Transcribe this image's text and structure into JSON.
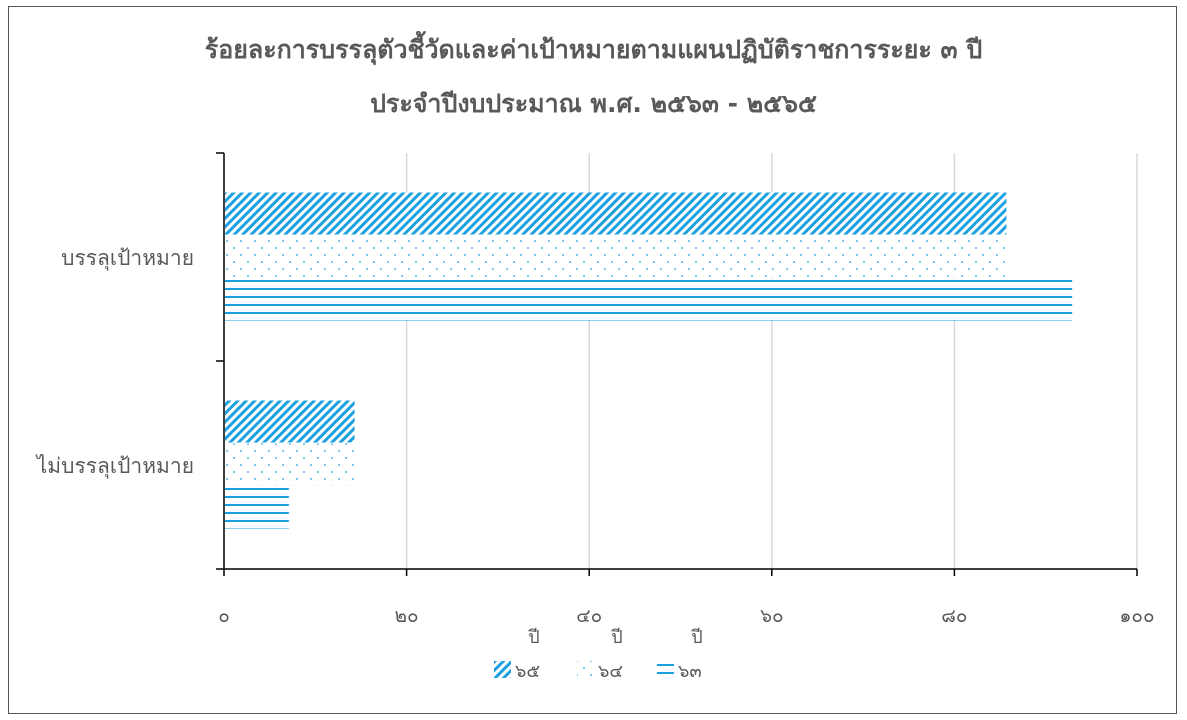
{
  "chart_data": {
    "type": "bar",
    "orientation": "horizontal",
    "title": "ร้อยละการบรรลุตัวชี้วัดและค่าเป้าหมายตามแผนปฏิบัติราชการระยะ ๓ ปี",
    "subtitle": "ประจำปีงบประมาณ พ.ศ. ๒๕๖๓ - ๒๕๖๕",
    "categories": [
      "บรรลุเป้าหมาย",
      "ไม่บรรลุเป้าหมาย"
    ],
    "series": [
      {
        "name": "ปี ๖๕",
        "values": [
          85.7,
          14.3
        ],
        "pattern": "diagonal"
      },
      {
        "name": "ปี ๖๔",
        "values": [
          85.7,
          14.3
        ],
        "pattern": "dots"
      },
      {
        "name": "ปี ๖๓",
        "values": [
          92.9,
          7.1
        ],
        "pattern": "horizontal"
      }
    ],
    "xlim": [
      0,
      100
    ],
    "xticks": [
      "๐",
      "๒๐",
      "๔๐",
      "๖๐",
      "๘๐",
      "๑๐๐"
    ],
    "xlabel": "",
    "ylabel": "",
    "grid": true,
    "legend_position": "bottom",
    "legend_entries": [
      {
        "top": "ปี",
        "bottom": "๖๕"
      },
      {
        "top": "ปี",
        "bottom": "๖๔"
      },
      {
        "top": "ปี",
        "bottom": "๖๓"
      }
    ],
    "color": "#1ba1e2"
  }
}
